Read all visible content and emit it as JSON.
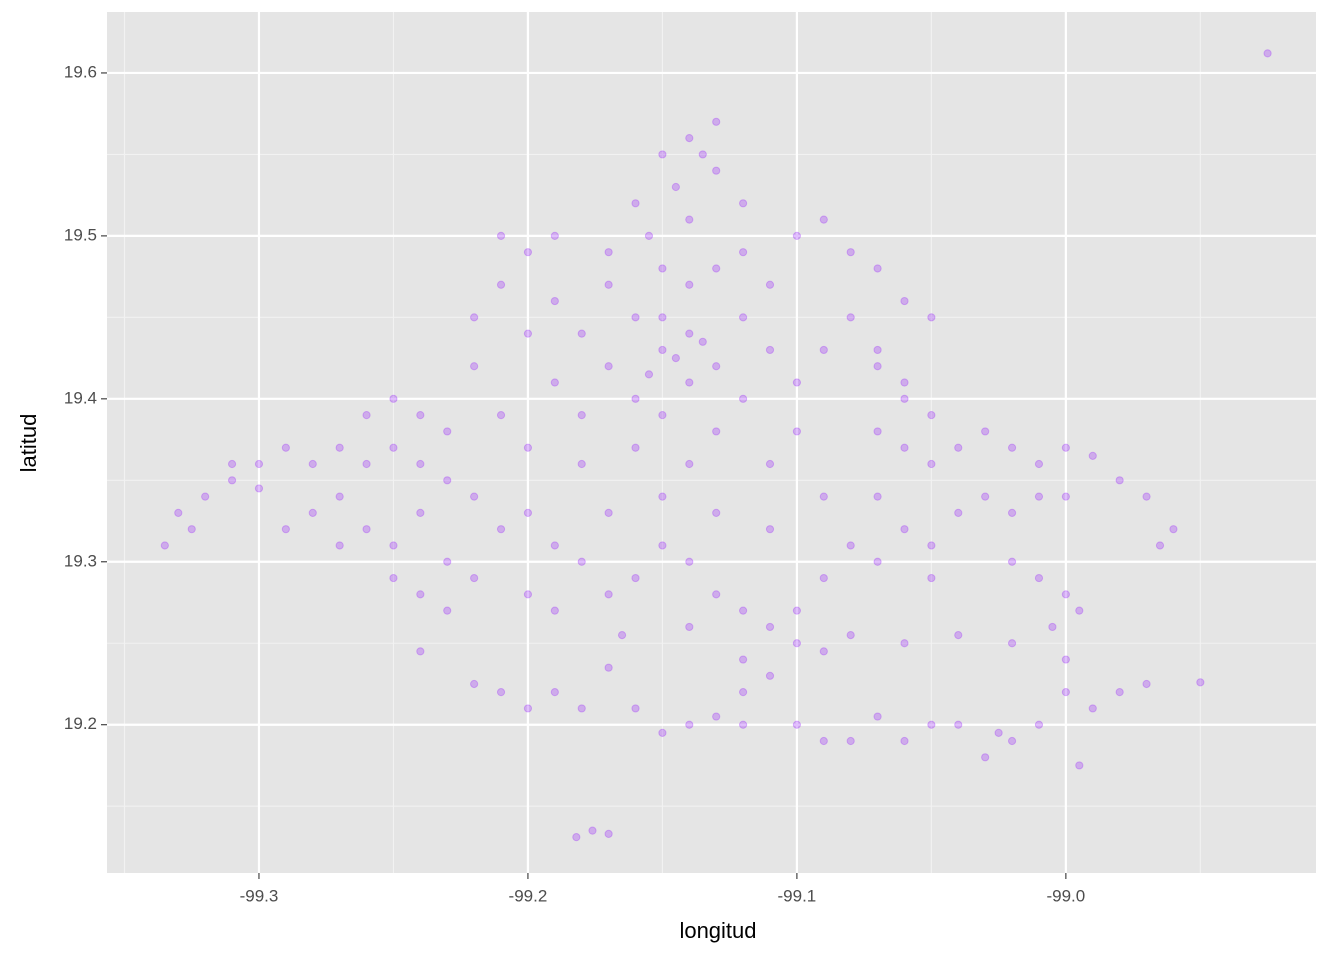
{
  "chart_data": {
    "type": "scatter",
    "x_label": "longitud",
    "y_label": "latitud",
    "color": "#8b00ff",
    "opacity": 0.25,
    "xlim": [
      -99.3565,
      -98.907
    ],
    "ylim": [
      19.109,
      19.6374
    ],
    "xticks": [
      -99.3,
      -99.2,
      -99.1,
      {
        "value": -99.0,
        "label": "-99.0"
      }
    ],
    "yticks": [
      19.2,
      19.3,
      19.4,
      19.5,
      19.6
    ],
    "xminor": [
      -99.35,
      -99.25,
      -99.15,
      -99.05,
      -98.95
    ],
    "yminor": [
      19.15,
      19.25,
      19.35,
      19.45,
      19.55
    ],
    "grid": true,
    "x": [
      -99.19,
      -99.18,
      -99.17,
      -99.16,
      -99.15,
      -99.14,
      -99.13,
      -99.12,
      -99.11,
      -99.1,
      -99.16,
      -99.15,
      -99.14,
      -99.13,
      -99.12,
      -99.17,
      -99.14,
      -99.11,
      -99.18,
      -99.19,
      -99.2,
      -99.21,
      -99.2,
      -99.21,
      -99.19,
      -99.17,
      -99.15,
      -99.13,
      -99.12,
      -99.1,
      -99.09,
      -99.08,
      -99.07,
      -99.06,
      -99.05,
      -99.08,
      -99.09,
      -99.07,
      -99.06,
      -99.05,
      -99.1,
      -99.11,
      -99.14,
      -99.16,
      -99.18,
      -99.2,
      -99.21,
      -99.22,
      -99.22,
      -99.15,
      -99.145,
      -99.135,
      -99.155,
      -99.14,
      -99.145,
      -99.15,
      -99.14,
      -99.13,
      -99.135,
      -99.13,
      -99.16,
      -99.12,
      -99.155,
      -99.23,
      -99.24,
      -99.25,
      -99.26,
      -99.27,
      -99.28,
      -99.29,
      -99.3,
      -99.31,
      -99.32,
      -99.33,
      -99.335,
      -99.325,
      -99.26,
      -99.25,
      -99.24,
      -99.23,
      -99.24,
      -99.25,
      -99.26,
      -99.27,
      -99.28,
      -99.29,
      -99.22,
      -99.21,
      -99.23,
      -99.24,
      -99.23,
      -99.22,
      -99.25,
      -99.27,
      -99.3,
      -99.31,
      -99.2,
      -99.19,
      -99.18,
      -99.17,
      -99.16,
      -99.15,
      -99.14,
      -99.13,
      -99.12,
      -99.11,
      -99.1,
      -99.09,
      -99.08,
      -99.17,
      -99.15,
      -99.13,
      -99.11,
      -99.09,
      -99.2,
      -99.19,
      -99.165,
      -99.14,
      -99.12,
      -99.11,
      -99.1,
      -99.12,
      -99.07,
      -99.06,
      -99.05,
      -99.04,
      -99.03,
      -99.02,
      -99.01,
      -99.0,
      -98.99,
      -98.98,
      -98.97,
      -98.96,
      -98.965,
      -99.07,
      -99.06,
      -99.05,
      -99.04,
      -99.03,
      -99.02,
      -99.01,
      -99.0,
      -99.06,
      -99.07,
      -99.05,
      -99.07,
      -99.02,
      -99.01,
      -99.0,
      -98.995,
      -99.005,
      -99.02,
      -99.04,
      -99.06,
      -99.08,
      -99.09,
      -99.0,
      -99.0,
      -98.99,
      -98.98,
      -98.97,
      -98.95,
      -99.21,
      -99.22,
      -99.2,
      -99.19,
      -99.18,
      -99.17,
      -99.16,
      -99.15,
      -99.14,
      -99.13,
      -99.12,
      -99.1,
      -99.09,
      -99.08,
      -99.07,
      -99.06,
      -99.05,
      -99.04,
      -99.03,
      -99.02,
      -99.01,
      -98.995,
      -99.025,
      -99.24,
      -99.182,
      -99.176,
      -99.17,
      -98.925
    ],
    "values": [
      19.46,
      19.44,
      19.42,
      19.45,
      19.43,
      19.44,
      19.42,
      19.45,
      19.43,
      19.41,
      19.4,
      19.39,
      19.41,
      19.38,
      19.4,
      19.47,
      19.47,
      19.47,
      19.39,
      19.41,
      19.44,
      19.47,
      19.49,
      19.5,
      19.5,
      19.49,
      19.48,
      19.48,
      19.49,
      19.5,
      19.51,
      19.49,
      19.48,
      19.46,
      19.45,
      19.45,
      19.43,
      19.42,
      19.41,
      19.39,
      19.38,
      19.36,
      19.36,
      19.37,
      19.36,
      19.37,
      19.39,
      19.42,
      19.45,
      19.45,
      19.425,
      19.435,
      19.415,
      19.51,
      19.53,
      19.55,
      19.56,
      19.57,
      19.55,
      19.54,
      19.52,
      19.52,
      19.5,
      19.38,
      19.36,
      19.37,
      19.36,
      19.37,
      19.36,
      19.37,
      19.36,
      19.35,
      19.34,
      19.33,
      19.31,
      19.32,
      19.39,
      19.4,
      19.39,
      19.35,
      19.33,
      19.31,
      19.32,
      19.31,
      19.33,
      19.32,
      19.34,
      19.32,
      19.3,
      19.28,
      19.27,
      19.29,
      19.29,
      19.34,
      19.345,
      19.36,
      19.33,
      19.31,
      19.3,
      19.28,
      19.29,
      19.31,
      19.3,
      19.28,
      19.27,
      19.26,
      19.27,
      19.29,
      19.31,
      19.33,
      19.34,
      19.33,
      19.32,
      19.34,
      19.28,
      19.27,
      19.255,
      19.26,
      19.24,
      19.23,
      19.25,
      19.22,
      19.38,
      19.37,
      19.36,
      19.37,
      19.38,
      19.37,
      19.36,
      19.37,
      19.365,
      19.35,
      19.34,
      19.32,
      19.31,
      19.34,
      19.32,
      19.31,
      19.33,
      19.34,
      19.33,
      19.34,
      19.34,
      19.4,
      19.43,
      19.29,
      19.3,
      19.3,
      19.29,
      19.28,
      19.27,
      19.26,
      19.25,
      19.255,
      19.25,
      19.255,
      19.245,
      19.24,
      19.22,
      19.21,
      19.22,
      19.225,
      19.226,
      19.22,
      19.225,
      19.21,
      19.22,
      19.21,
      19.235,
      19.21,
      19.195,
      19.2,
      19.205,
      19.2,
      19.2,
      19.19,
      19.19,
      19.205,
      19.19,
      19.2,
      19.2,
      19.18,
      19.19,
      19.2,
      19.175,
      19.195,
      19.245,
      19.131,
      19.135,
      19.133,
      19.612
    ]
  }
}
